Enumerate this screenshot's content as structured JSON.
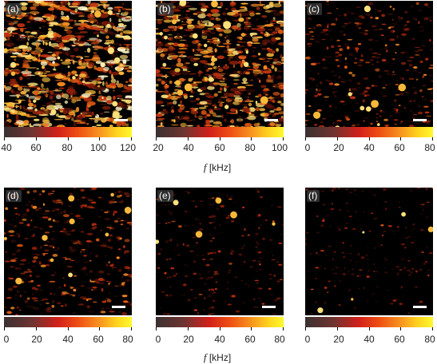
{
  "panels": [
    {
      "label": "(a)",
      "ticks": [
        "40",
        "60",
        "80",
        "100",
        "120"
      ],
      "density": 0.85
    },
    {
      "label": "(b)",
      "ticks": [
        "20",
        "40",
        "60",
        "80",
        "100"
      ],
      "density": 0.7
    },
    {
      "label": "(c)",
      "ticks": [
        "0",
        "20",
        "40",
        "60",
        "80"
      ],
      "density": 0.25
    },
    {
      "label": "(d)",
      "ticks": [
        "0",
        "20",
        "40",
        "60",
        "80"
      ],
      "density": 0.3
    },
    {
      "label": "(e)",
      "ticks": [
        "0",
        "20",
        "40",
        "60",
        "80"
      ],
      "density": 0.08
    },
    {
      "label": "(f)",
      "ticks": [
        "0",
        "20",
        "40",
        "60",
        "80"
      ],
      "density": 0.03
    }
  ],
  "axis_caption": {
    "symbol": "f",
    "unit": "[kHz]"
  },
  "colors": {
    "low": "#3a3131",
    "mid": "#d2201a",
    "high": "#fffa2e"
  }
}
